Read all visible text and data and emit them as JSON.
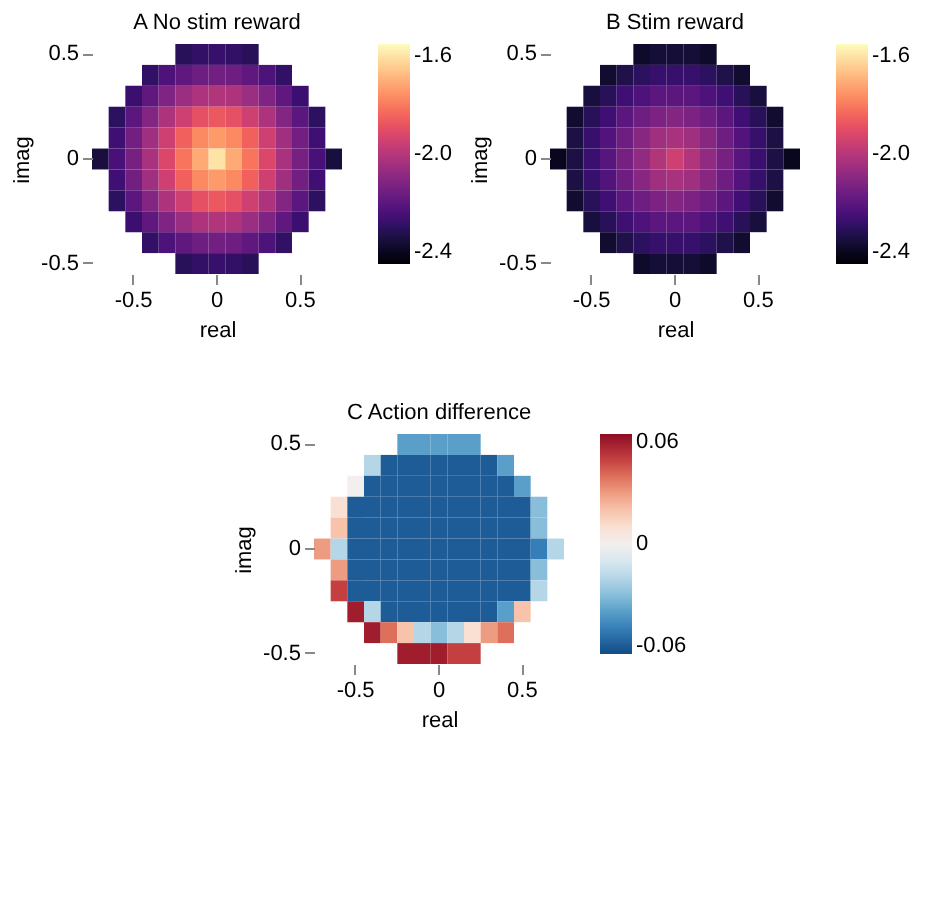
{
  "chart_data": [
    {
      "type": "heatmap",
      "title": "A No stim reward",
      "xlabel": "real",
      "ylabel": "imag",
      "categories": [
        null,
        null,
        "-0.5",
        null,
        null,
        null,
        null,
        "0",
        null,
        null,
        null,
        null,
        "0.5",
        null,
        null
      ],
      "y_categories": [
        "0.5",
        null,
        null,
        null,
        null,
        "0",
        null,
        null,
        null,
        null,
        "-0.5"
      ],
      "clim": [
        -2.45,
        -1.55
      ],
      "cticks": [
        {
          "value": -2.4,
          "label": "-2.4"
        },
        {
          "value": -2.0,
          "label": "-2.0"
        },
        {
          "value": -1.6,
          "label": "-1.6"
        }
      ],
      "cells": [
        [
          null,
          null,
          null,
          null,
          null,
          -2.31,
          -2.29,
          -2.28,
          -2.29,
          -2.31,
          null,
          null,
          null,
          null,
          null
        ],
        [
          null,
          null,
          null,
          -2.29,
          -2.23,
          -2.19,
          -2.16,
          -2.15,
          -2.16,
          -2.19,
          -2.23,
          -2.29,
          null,
          null,
          null
        ],
        [
          null,
          null,
          -2.27,
          -2.19,
          -2.12,
          -2.06,
          -2.02,
          -2.01,
          -2.02,
          -2.06,
          -2.12,
          -2.19,
          -2.27,
          null,
          null
        ],
        [
          null,
          -2.3,
          -2.2,
          -2.11,
          -2.02,
          -1.95,
          -1.89,
          -1.87,
          -1.89,
          -1.95,
          -2.02,
          -2.11,
          -2.2,
          -2.3,
          null
        ],
        [
          null,
          -2.26,
          -2.15,
          -2.05,
          -1.95,
          -1.85,
          -1.77,
          -1.74,
          -1.77,
          -1.85,
          -1.95,
          -2.05,
          -2.15,
          -2.26,
          null
        ],
        [
          -2.35,
          -2.24,
          -2.14,
          -2.03,
          -1.92,
          -1.81,
          -1.71,
          -1.6,
          -1.71,
          -1.81,
          -1.92,
          -2.03,
          -2.14,
          -2.24,
          -2.35
        ],
        [
          null,
          -2.26,
          -2.15,
          -2.05,
          -1.95,
          -1.85,
          -1.77,
          -1.74,
          -1.77,
          -1.85,
          -1.95,
          -2.05,
          -2.15,
          -2.26,
          null
        ],
        [
          null,
          -2.3,
          -2.2,
          -2.11,
          -2.02,
          -1.95,
          -1.89,
          -1.87,
          -1.89,
          -1.95,
          -2.02,
          -2.11,
          -2.2,
          -2.3,
          null
        ],
        [
          null,
          null,
          -2.27,
          -2.19,
          -2.12,
          -2.06,
          -2.02,
          -2.01,
          -2.02,
          -2.06,
          -2.12,
          -2.19,
          -2.27,
          null,
          null
        ],
        [
          null,
          null,
          null,
          -2.29,
          -2.23,
          -2.19,
          -2.16,
          -2.15,
          -2.16,
          -2.19,
          -2.23,
          -2.29,
          null,
          null,
          null
        ],
        [
          null,
          null,
          null,
          null,
          null,
          -2.31,
          -2.29,
          -2.28,
          -2.29,
          -2.31,
          null,
          null,
          null,
          null,
          null
        ]
      ]
    },
    {
      "type": "heatmap",
      "title": "B Stim reward",
      "xlabel": "real",
      "ylabel": "imag",
      "categories": [
        null,
        null,
        "-0.5",
        null,
        null,
        null,
        null,
        "0",
        null,
        null,
        null,
        null,
        "0.5",
        null,
        null
      ],
      "y_categories": [
        "0.5",
        null,
        null,
        null,
        null,
        "0",
        null,
        null,
        null,
        null,
        "-0.5"
      ],
      "clim": [
        -2.45,
        -1.55
      ],
      "cticks": [
        {
          "value": -2.4,
          "label": "-2.4"
        },
        {
          "value": -2.0,
          "label": "-2.0"
        },
        {
          "value": -1.6,
          "label": "-1.6"
        }
      ],
      "cells": [
        [
          null,
          null,
          null,
          null,
          null,
          -2.38,
          -2.36,
          -2.36,
          -2.36,
          -2.38,
          null,
          null,
          null,
          null,
          null
        ],
        [
          null,
          null,
          null,
          -2.37,
          -2.33,
          -2.3,
          -2.28,
          -2.28,
          -2.28,
          -2.3,
          -2.33,
          -2.37,
          null,
          null,
          null
        ],
        [
          null,
          null,
          -2.35,
          -2.31,
          -2.26,
          -2.23,
          -2.2,
          -2.2,
          -2.2,
          -2.23,
          -2.26,
          -2.31,
          -2.35,
          null,
          null
        ],
        [
          null,
          -2.37,
          -2.31,
          -2.26,
          -2.2,
          -2.16,
          -2.13,
          -2.11,
          -2.13,
          -2.16,
          -2.2,
          -2.26,
          -2.31,
          -2.37,
          null
        ],
        [
          null,
          -2.34,
          -2.28,
          -2.22,
          -2.16,
          -2.1,
          -2.05,
          -2.03,
          -2.05,
          -2.1,
          -2.16,
          -2.22,
          -2.28,
          -2.34,
          null
        ],
        [
          -2.4,
          -2.34,
          -2.27,
          -2.21,
          -2.14,
          -2.08,
          -2.01,
          -1.95,
          -2.01,
          -2.08,
          -2.14,
          -2.21,
          -2.27,
          -2.34,
          -2.4
        ],
        [
          null,
          -2.34,
          -2.28,
          -2.22,
          -2.16,
          -2.1,
          -2.05,
          -2.03,
          -2.05,
          -2.1,
          -2.16,
          -2.22,
          -2.28,
          -2.34,
          null
        ],
        [
          null,
          -2.37,
          -2.31,
          -2.26,
          -2.2,
          -2.16,
          -2.13,
          -2.11,
          -2.13,
          -2.16,
          -2.2,
          -2.26,
          -2.31,
          -2.37,
          null
        ],
        [
          null,
          null,
          -2.35,
          -2.31,
          -2.26,
          -2.23,
          -2.2,
          -2.2,
          -2.2,
          -2.23,
          -2.26,
          -2.31,
          -2.35,
          null,
          null
        ],
        [
          null,
          null,
          null,
          -2.37,
          -2.33,
          -2.3,
          -2.28,
          -2.28,
          -2.28,
          -2.3,
          -2.33,
          -2.37,
          null,
          null,
          null
        ],
        [
          null,
          null,
          null,
          null,
          null,
          -2.38,
          -2.36,
          -2.36,
          -2.36,
          -2.38,
          null,
          null,
          null,
          null,
          null
        ]
      ]
    },
    {
      "type": "heatmap",
      "title": "C Action difference",
      "xlabel": "real",
      "ylabel": "imag",
      "categories": [
        null,
        null,
        "-0.5",
        null,
        null,
        null,
        null,
        "0",
        null,
        null,
        null,
        null,
        "0.5",
        null,
        null
      ],
      "y_categories": [
        "0.5",
        null,
        null,
        null,
        null,
        "0",
        null,
        null,
        null,
        null,
        "-0.5"
      ],
      "clim": [
        -0.065,
        0.065
      ],
      "cticks": [
        -0.06,
        0,
        0.06
      ],
      "cells": [
        [
          null,
          null,
          null,
          null,
          null,
          -0.04,
          -0.04,
          -0.04,
          -0.04,
          -0.04,
          null,
          null,
          null,
          null,
          null
        ],
        [
          null,
          null,
          null,
          -0.02,
          -0.06,
          -0.06,
          -0.06,
          -0.06,
          -0.06,
          -0.06,
          -0.06,
          -0.04,
          null,
          null,
          null
        ],
        [
          null,
          null,
          0.0,
          -0.06,
          -0.06,
          -0.06,
          -0.06,
          -0.06,
          -0.06,
          -0.06,
          -0.06,
          -0.06,
          -0.04,
          null,
          null
        ],
        [
          null,
          0.01,
          -0.06,
          -0.06,
          -0.06,
          -0.06,
          -0.06,
          -0.06,
          -0.06,
          -0.06,
          -0.06,
          -0.06,
          -0.06,
          -0.03,
          null
        ],
        [
          null,
          0.02,
          -0.06,
          -0.06,
          -0.06,
          -0.06,
          -0.06,
          -0.06,
          -0.06,
          -0.06,
          -0.06,
          -0.06,
          -0.06,
          -0.03,
          null
        ],
        [
          0.03,
          -0.02,
          -0.06,
          -0.06,
          -0.06,
          -0.06,
          -0.06,
          -0.06,
          -0.06,
          -0.06,
          -0.06,
          -0.06,
          -0.06,
          -0.05,
          -0.02
        ],
        [
          null,
          0.03,
          -0.06,
          -0.06,
          -0.06,
          -0.06,
          -0.06,
          -0.06,
          -0.06,
          -0.06,
          -0.06,
          -0.06,
          -0.06,
          -0.03,
          null
        ],
        [
          null,
          0.05,
          -0.06,
          -0.06,
          -0.06,
          -0.06,
          -0.06,
          -0.06,
          -0.06,
          -0.06,
          -0.06,
          -0.06,
          -0.06,
          -0.02,
          null
        ],
        [
          null,
          null,
          0.06,
          -0.02,
          -0.06,
          -0.06,
          -0.06,
          -0.06,
          -0.06,
          -0.06,
          -0.06,
          -0.04,
          0.02,
          null,
          null
        ],
        [
          null,
          null,
          null,
          0.06,
          0.04,
          0.02,
          -0.02,
          -0.03,
          -0.02,
          0.01,
          0.03,
          0.04,
          null,
          null,
          null
        ],
        [
          null,
          null,
          null,
          null,
          null,
          0.06,
          0.06,
          0.06,
          0.05,
          0.05,
          null,
          null,
          null,
          null,
          null
        ]
      ]
    }
  ]
}
